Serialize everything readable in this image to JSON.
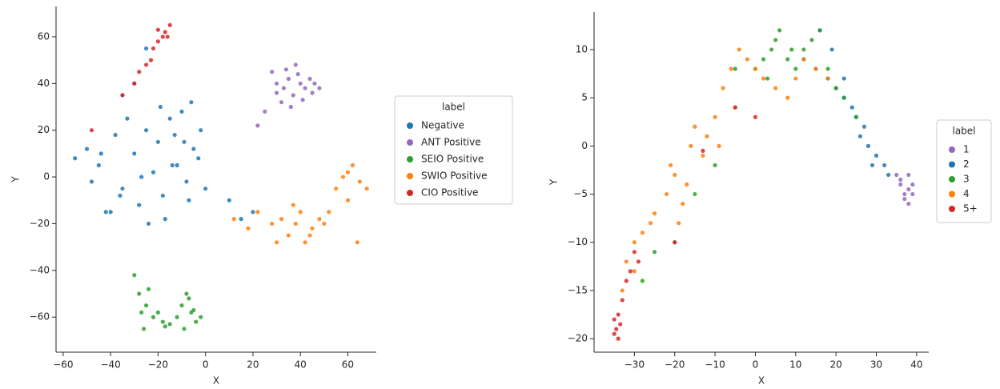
{
  "chart_data": [
    {
      "type": "scatter",
      "xlabel": "X",
      "ylabel": "Y",
      "legend_title": "label",
      "xlim": [
        -63,
        72
      ],
      "ylim": [
        -75,
        73
      ],
      "xticks": [
        {
          "value": -60,
          "label": "−60"
        },
        {
          "value": -40,
          "label": "−40"
        },
        {
          "value": -20,
          "label": "−20"
        },
        0,
        20,
        40,
        60
      ],
      "yticks": [
        {
          "value": -60,
          "label": "−60"
        },
        {
          "value": -40,
          "label": "−40"
        },
        {
          "value": -20,
          "label": "−20"
        },
        0,
        20,
        40,
        60
      ],
      "series": [
        {
          "name": "Negative",
          "color": "#1f77b4",
          "x": [
            -55,
            -50,
            -45,
            -42,
            -38,
            -35,
            -30,
            -28,
            -25,
            -22,
            -20,
            -18,
            -15,
            -12,
            -10,
            -8,
            -5,
            -3,
            0,
            -48,
            -40,
            -33,
            -27,
            -17,
            -13,
            -7,
            -2,
            -44,
            -36,
            -24,
            -19,
            -9,
            -6,
            -30,
            -14,
            10,
            15,
            20,
            -35,
            -25
          ],
          "y": [
            8,
            12,
            5,
            -15,
            18,
            -5,
            10,
            -12,
            20,
            2,
            15,
            -8,
            25,
            5,
            28,
            -2,
            12,
            8,
            -5,
            -2,
            -15,
            25,
            0,
            -18,
            18,
            -10,
            20,
            10,
            -8,
            -20,
            30,
            15,
            32,
            40,
            5,
            -10,
            -18,
            -15,
            35,
            55
          ]
        },
        {
          "name": "ANT Positive",
          "color": "#9467bd",
          "x": [
            28,
            30,
            33,
            35,
            37,
            40,
            42,
            45,
            48,
            38,
            32,
            36,
            44,
            41,
            25,
            22,
            34,
            39,
            46,
            30
          ],
          "y": [
            45,
            40,
            38,
            42,
            35,
            40,
            38,
            36,
            38,
            48,
            32,
            30,
            42,
            33,
            28,
            22,
            46,
            44,
            40,
            36
          ]
        },
        {
          "name": "SEIO Positive",
          "color": "#2ca02c",
          "x": [
            -30,
            -28,
            -25,
            -22,
            -20,
            -18,
            -26,
            -24,
            -15,
            -12,
            -10,
            -8,
            -6,
            -4,
            -2,
            -9,
            -7,
            -5,
            -17,
            -27
          ],
          "y": [
            -42,
            -50,
            -55,
            -60,
            -58,
            -62,
            -65,
            -48,
            -63,
            -60,
            -55,
            -50,
            -58,
            -62,
            -60,
            -65,
            -52,
            -57,
            -64,
            -58
          ]
        },
        {
          "name": "SWIO Positive",
          "color": "#ff7f0e",
          "x": [
            12,
            18,
            22,
            28,
            32,
            35,
            38,
            40,
            42,
            45,
            48,
            50,
            55,
            58,
            60,
            62,
            65,
            68,
            37,
            44,
            52,
            30,
            64,
            60
          ],
          "y": [
            -18,
            -22,
            -15,
            -20,
            -18,
            -25,
            -20,
            -15,
            -28,
            -22,
            -18,
            -20,
            -5,
            0,
            -10,
            5,
            -2,
            -5,
            -12,
            -25,
            -15,
            -28,
            -28,
            2
          ]
        },
        {
          "name": "CIO Positive",
          "color": "#d62728",
          "x": [
            -15,
            -17,
            -18,
            -20,
            -22,
            -23,
            -25,
            -28,
            -30,
            -20,
            -16,
            -35,
            -48
          ],
          "y": [
            65,
            62,
            60,
            58,
            55,
            50,
            48,
            45,
            40,
            63,
            60,
            35,
            20
          ]
        }
      ]
    },
    {
      "type": "scatter",
      "xlabel": "X",
      "ylabel": "Y",
      "legend_title": "label",
      "xlim": [
        -40,
        43
      ],
      "ylim": [
        -21.4,
        13.9
      ],
      "xticks": [
        {
          "value": -30,
          "label": "−30"
        },
        {
          "value": -20,
          "label": "−20"
        },
        {
          "value": -10,
          "label": "−10"
        },
        0,
        10,
        20,
        30,
        40
      ],
      "yticks": [
        {
          "value": -20,
          "label": "−20"
        },
        {
          "value": -15,
          "label": "−15"
        },
        {
          "value": -10,
          "label": "−10"
        },
        {
          "value": -5,
          "label": "−5"
        },
        0,
        5,
        10
      ],
      "series": [
        {
          "name": "1",
          "color": "#9467bd",
          "x": [
            35,
            36,
            37,
            38,
            39,
            37,
            38,
            36,
            39,
            38
          ],
          "y": [
            -3,
            -4,
            -5,
            -4.5,
            -5,
            -5.5,
            -6,
            -3.5,
            -4,
            -3
          ]
        },
        {
          "name": "2",
          "color": "#1f77b4",
          "x": [
            12,
            15,
            18,
            20,
            22,
            24,
            25,
            27,
            28,
            30,
            32,
            33,
            22,
            26,
            29,
            19,
            16
          ],
          "y": [
            9,
            8,
            7,
            6,
            5,
            4,
            3,
            2,
            0,
            -1,
            -2,
            -3,
            7,
            1,
            -2,
            10,
            12
          ]
        },
        {
          "name": "3",
          "color": "#2ca02c",
          "x": [
            -25,
            -20,
            -10,
            -5,
            0,
            2,
            4,
            5,
            6,
            8,
            10,
            12,
            14,
            16,
            18,
            20,
            22,
            25,
            -28,
            -15,
            3,
            9
          ],
          "y": [
            -11,
            -10,
            -2,
            8,
            8,
            9,
            10,
            11,
            12,
            9,
            8,
            10,
            11,
            12,
            8,
            6,
            5,
            3,
            -14,
            -5,
            7,
            10
          ]
        },
        {
          "name": "4",
          "color": "#ff7f0e",
          "x": [
            -33,
            -32,
            -30,
            -28,
            -25,
            -22,
            -20,
            -18,
            -16,
            -15,
            -12,
            -10,
            -8,
            -6,
            -4,
            -2,
            0,
            2,
            5,
            8,
            10,
            -26,
            -21,
            -17,
            -13,
            -9,
            -5,
            12,
            15,
            18,
            -30,
            -19
          ],
          "y": [
            -15,
            -12,
            -10,
            -9,
            -7,
            -5,
            -3,
            -6,
            0,
            2,
            1,
            3,
            6,
            8,
            10,
            9,
            8,
            7,
            6,
            5,
            7,
            -8,
            -2,
            -4,
            -1,
            0,
            4,
            9,
            8,
            7,
            -13,
            -8
          ]
        },
        {
          "name": "5+",
          "color": "#d62728",
          "x": [
            -35,
            -34.5,
            -34,
            -33.5,
            -35,
            -34,
            -33,
            -31,
            -30,
            -32,
            -29,
            -20,
            -13,
            -5,
            0
          ],
          "y": [
            -18,
            -19,
            -17.5,
            -18.5,
            -19.5,
            -20,
            -16,
            -13,
            -11,
            -14,
            -12,
            -10,
            -0.5,
            4,
            3
          ]
        }
      ]
    }
  ]
}
